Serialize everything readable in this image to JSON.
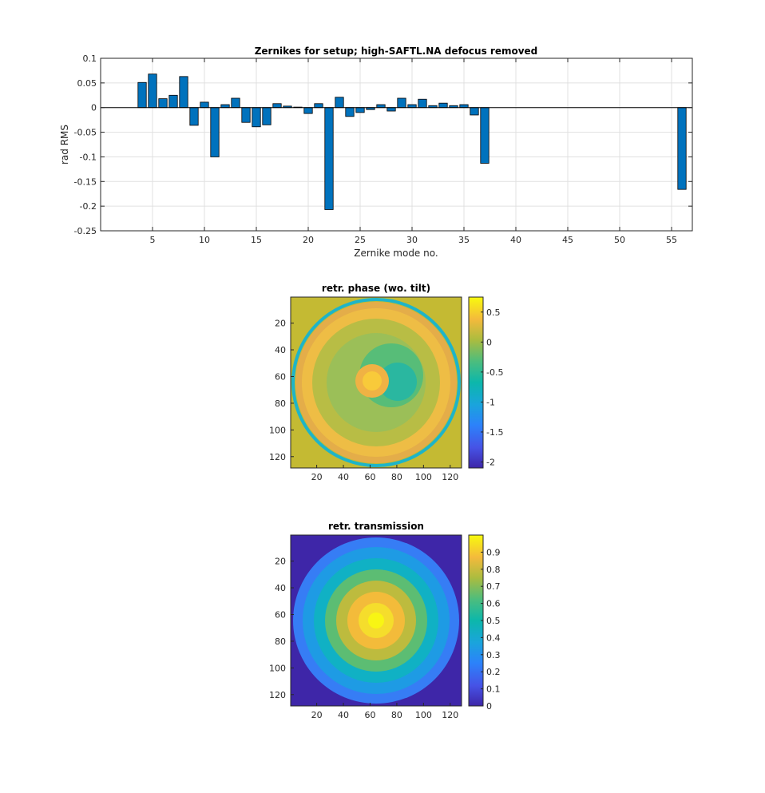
{
  "chart_data": [
    {
      "type": "bar",
      "title": "Zernikes for setup; high-SAFTL.NA defocus removed",
      "xlabel": "Zernike mode no.",
      "ylabel": "rad RMS",
      "xlim": [
        0,
        57
      ],
      "ylim": [
        -0.25,
        0.1
      ],
      "grid": true,
      "xticks": [
        5,
        10,
        15,
        20,
        25,
        30,
        35,
        40,
        45,
        50,
        55
      ],
      "yticks": [
        0.1,
        0.05,
        0,
        -0.05,
        -0.1,
        -0.15,
        -0.2,
        -0.25
      ],
      "ytick_labels": [
        "0.1",
        "0.05",
        "0",
        "-0.05",
        "-0.1",
        "-0.15",
        "-0.2",
        "-0.25"
      ],
      "x": [
        4,
        5,
        6,
        7,
        8,
        9,
        10,
        11,
        12,
        13,
        14,
        15,
        16,
        17,
        18,
        19,
        20,
        21,
        22,
        23,
        24,
        25,
        26,
        27,
        28,
        29,
        30,
        31,
        32,
        33,
        34,
        35,
        36,
        37,
        56
      ],
      "values": [
        0.051,
        0.068,
        0.018,
        0.025,
        0.063,
        -0.036,
        0.011,
        -0.1,
        0.006,
        0.019,
        -0.03,
        -0.039,
        -0.035,
        0.008,
        0.003,
        0.001,
        -0.012,
        0.008,
        -0.207,
        0.021,
        -0.018,
        -0.01,
        -0.004,
        0.006,
        -0.007,
        0.019,
        0.006,
        0.017,
        0.004,
        0.009,
        0.004,
        0.006,
        -0.015,
        -0.113,
        -0.166
      ],
      "color": "#0072bd"
    },
    {
      "type": "heatmap",
      "title": "retr. phase (wo. tilt)",
      "xlim": [
        0.5,
        128.5
      ],
      "ylim": [
        0.5,
        128.5
      ],
      "xticks": [
        20,
        40,
        60,
        80,
        100,
        120
      ],
      "yticks": [
        20,
        40,
        60,
        80,
        100,
        120
      ],
      "colormap": "parula",
      "clim": [
        -2.1,
        0.75
      ],
      "colorbar_ticks": [
        0.5,
        0,
        -0.5,
        -1,
        -1.5,
        -2
      ],
      "colorbar_labels": [
        "0.5",
        "0",
        "-0.5",
        "-1",
        "-1.5",
        "-2"
      ]
    },
    {
      "type": "heatmap",
      "title": "retr. transmission",
      "xlim": [
        0.5,
        128.5
      ],
      "ylim": [
        0.5,
        128.5
      ],
      "xticks": [
        20,
        40,
        60,
        80,
        100,
        120
      ],
      "yticks": [
        20,
        40,
        60,
        80,
        100,
        120
      ],
      "colormap": "parula",
      "clim": [
        0,
        1
      ],
      "colorbar_ticks": [
        0.9,
        0.8,
        0.7,
        0.6,
        0.5,
        0.4,
        0.3,
        0.2,
        0.1,
        0
      ],
      "colorbar_labels": [
        "0.9",
        "0.8",
        "0.7",
        "0.6",
        "0.5",
        "0.4",
        "0.3",
        "0.2",
        "0.1",
        "0"
      ]
    }
  ]
}
